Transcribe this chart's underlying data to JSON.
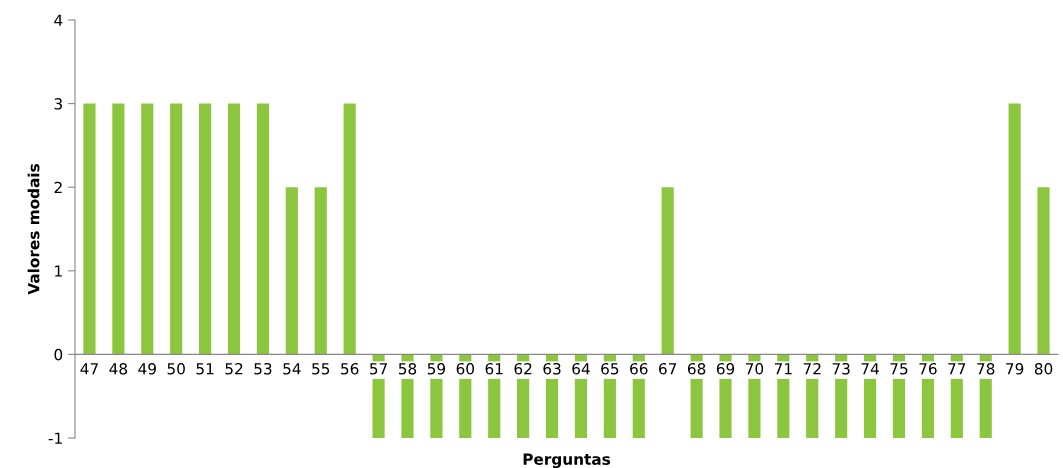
{
  "chart_data": {
    "type": "bar",
    "xlabel": "Perguntas",
    "ylabel": "Valores modais",
    "categories": [
      "47",
      "48",
      "49",
      "50",
      "51",
      "52",
      "53",
      "54",
      "55",
      "56",
      "57",
      "58",
      "59",
      "60",
      "61",
      "62",
      "63",
      "64",
      "65",
      "66",
      "67",
      "68",
      "69",
      "70",
      "71",
      "72",
      "73",
      "74",
      "75",
      "76",
      "77",
      "78",
      "79",
      "80"
    ],
    "values": [
      3,
      3,
      3,
      3,
      3,
      3,
      3,
      2,
      2,
      3,
      -1,
      -1,
      -1,
      -1,
      -1,
      -1,
      -1,
      -1,
      -1,
      -1,
      2,
      -1,
      -1,
      -1,
      -1,
      -1,
      -1,
      -1,
      -1,
      -1,
      -1,
      -1,
      3,
      2
    ],
    "color": "#8cc63f",
    "ylim": [
      -1,
      4
    ],
    "yticks": [
      -1,
      0,
      1,
      2,
      3,
      4
    ],
    "grid": false,
    "legend": false
  }
}
